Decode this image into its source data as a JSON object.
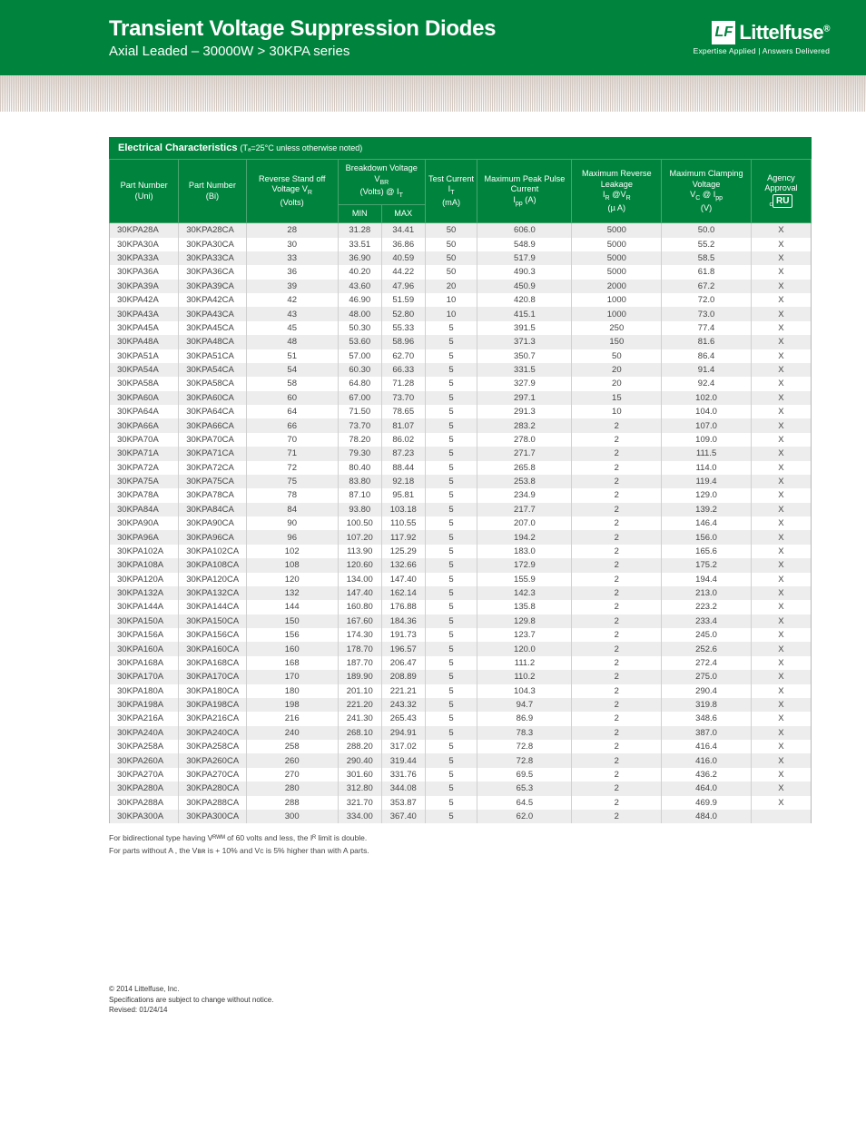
{
  "header": {
    "title": "Transient Voltage Suppression Diodes",
    "subtitle": "Axial Leaded – 30000W  >  30KPA series",
    "brand": "Littelfuse",
    "tagline": "Expertise Applied | Answers Delivered"
  },
  "section": {
    "label": "Electrical Characteristics",
    "note": "(Tₐ=25°C unless otherwise noted)"
  },
  "columns": {
    "uni": "Part Number (Uni)",
    "bi": "Part Number (Bi)",
    "vr": "Reverse Stand off Voltage V",
    "vr_unit": "(Volts)",
    "vbr": "Breakdown Voltage V",
    "vbr_unit": "(Volts) @ I",
    "min": "MIN",
    "max": "MAX",
    "it": "Test Current I",
    "it_unit": "(mA)",
    "ipp": "Maximum Peak Pulse Current",
    "ipp_sym": "I",
    "ipp_unit": " (A)",
    "ir": "Maximum Reverse Leakage",
    "ir_sym": "I",
    "ir_at": " @V",
    "ir_unit": "(µ A)",
    "vc": "Maximum Clamping Voltage",
    "vc_sym": "V",
    "vc_at": " @ I",
    "vc_unit": "(V)",
    "agency": "Agency Approval"
  },
  "rows": [
    [
      "30KPA28A",
      "30KPA28CA",
      "28",
      "31.28",
      "34.41",
      "50",
      "606.0",
      "5000",
      "50.0",
      "X"
    ],
    [
      "30KPA30A",
      "30KPA30CA",
      "30",
      "33.51",
      "36.86",
      "50",
      "548.9",
      "5000",
      "55.2",
      "X"
    ],
    [
      "30KPA33A",
      "30KPA33CA",
      "33",
      "36.90",
      "40.59",
      "50",
      "517.9",
      "5000",
      "58.5",
      "X"
    ],
    [
      "30KPA36A",
      "30KPA36CA",
      "36",
      "40.20",
      "44.22",
      "50",
      "490.3",
      "5000",
      "61.8",
      "X"
    ],
    [
      "30KPA39A",
      "30KPA39CA",
      "39",
      "43.60",
      "47.96",
      "20",
      "450.9",
      "2000",
      "67.2",
      "X"
    ],
    [
      "30KPA42A",
      "30KPA42CA",
      "42",
      "46.90",
      "51.59",
      "10",
      "420.8",
      "1000",
      "72.0",
      "X"
    ],
    [
      "30KPA43A",
      "30KPA43CA",
      "43",
      "48.00",
      "52.80",
      "10",
      "415.1",
      "1000",
      "73.0",
      "X"
    ],
    [
      "30KPA45A",
      "30KPA45CA",
      "45",
      "50.30",
      "55.33",
      "5",
      "391.5",
      "250",
      "77.4",
      "X"
    ],
    [
      "30KPA48A",
      "30KPA48CA",
      "48",
      "53.60",
      "58.96",
      "5",
      "371.3",
      "150",
      "81.6",
      "X"
    ],
    [
      "30KPA51A",
      "30KPA51CA",
      "51",
      "57.00",
      "62.70",
      "5",
      "350.7",
      "50",
      "86.4",
      "X"
    ],
    [
      "30KPA54A",
      "30KPA54CA",
      "54",
      "60.30",
      "66.33",
      "5",
      "331.5",
      "20",
      "91.4",
      "X"
    ],
    [
      "30KPA58A",
      "30KPA58CA",
      "58",
      "64.80",
      "71.28",
      "5",
      "327.9",
      "20",
      "92.4",
      "X"
    ],
    [
      "30KPA60A",
      "30KPA60CA",
      "60",
      "67.00",
      "73.70",
      "5",
      "297.1",
      "15",
      "102.0",
      "X"
    ],
    [
      "30KPA64A",
      "30KPA64CA",
      "64",
      "71.50",
      "78.65",
      "5",
      "291.3",
      "10",
      "104.0",
      "X"
    ],
    [
      "30KPA66A",
      "30KPA66CA",
      "66",
      "73.70",
      "81.07",
      "5",
      "283.2",
      "2",
      "107.0",
      "X"
    ],
    [
      "30KPA70A",
      "30KPA70CA",
      "70",
      "78.20",
      "86.02",
      "5",
      "278.0",
      "2",
      "109.0",
      "X"
    ],
    [
      "30KPA71A",
      "30KPA71CA",
      "71",
      "79.30",
      "87.23",
      "5",
      "271.7",
      "2",
      "111.5",
      "X"
    ],
    [
      "30KPA72A",
      "30KPA72CA",
      "72",
      "80.40",
      "88.44",
      "5",
      "265.8",
      "2",
      "114.0",
      "X"
    ],
    [
      "30KPA75A",
      "30KPA75CA",
      "75",
      "83.80",
      "92.18",
      "5",
      "253.8",
      "2",
      "119.4",
      "X"
    ],
    [
      "30KPA78A",
      "30KPA78CA",
      "78",
      "87.10",
      "95.81",
      "5",
      "234.9",
      "2",
      "129.0",
      "X"
    ],
    [
      "30KPA84A",
      "30KPA84CA",
      "84",
      "93.80",
      "103.18",
      "5",
      "217.7",
      "2",
      "139.2",
      "X"
    ],
    [
      "30KPA90A",
      "30KPA90CA",
      "90",
      "100.50",
      "110.55",
      "5",
      "207.0",
      "2",
      "146.4",
      "X"
    ],
    [
      "30KPA96A",
      "30KPA96CA",
      "96",
      "107.20",
      "117.92",
      "5",
      "194.2",
      "2",
      "156.0",
      "X"
    ],
    [
      "30KPA102A",
      "30KPA102CA",
      "102",
      "113.90",
      "125.29",
      "5",
      "183.0",
      "2",
      "165.6",
      "X"
    ],
    [
      "30KPA108A",
      "30KPA108CA",
      "108",
      "120.60",
      "132.66",
      "5",
      "172.9",
      "2",
      "175.2",
      "X"
    ],
    [
      "30KPA120A",
      "30KPA120CA",
      "120",
      "134.00",
      "147.40",
      "5",
      "155.9",
      "2",
      "194.4",
      "X"
    ],
    [
      "30KPA132A",
      "30KPA132CA",
      "132",
      "147.40",
      "162.14",
      "5",
      "142.3",
      "2",
      "213.0",
      "X"
    ],
    [
      "30KPA144A",
      "30KPA144CA",
      "144",
      "160.80",
      "176.88",
      "5",
      "135.8",
      "2",
      "223.2",
      "X"
    ],
    [
      "30KPA150A",
      "30KPA150CA",
      "150",
      "167.60",
      "184.36",
      "5",
      "129.8",
      "2",
      "233.4",
      "X"
    ],
    [
      "30KPA156A",
      "30KPA156CA",
      "156",
      "174.30",
      "191.73",
      "5",
      "123.7",
      "2",
      "245.0",
      "X"
    ],
    [
      "30KPA160A",
      "30KPA160CA",
      "160",
      "178.70",
      "196.57",
      "5",
      "120.0",
      "2",
      "252.6",
      "X"
    ],
    [
      "30KPA168A",
      "30KPA168CA",
      "168",
      "187.70",
      "206.47",
      "5",
      "111.2",
      "2",
      "272.4",
      "X"
    ],
    [
      "30KPA170A",
      "30KPA170CA",
      "170",
      "189.90",
      "208.89",
      "5",
      "110.2",
      "2",
      "275.0",
      "X"
    ],
    [
      "30KPA180A",
      "30KPA180CA",
      "180",
      "201.10",
      "221.21",
      "5",
      "104.3",
      "2",
      "290.4",
      "X"
    ],
    [
      "30KPA198A",
      "30KPA198CA",
      "198",
      "221.20",
      "243.32",
      "5",
      "94.7",
      "2",
      "319.8",
      "X"
    ],
    [
      "30KPA216A",
      "30KPA216CA",
      "216",
      "241.30",
      "265.43",
      "5",
      "86.9",
      "2",
      "348.6",
      "X"
    ],
    [
      "30KPA240A",
      "30KPA240CA",
      "240",
      "268.10",
      "294.91",
      "5",
      "78.3",
      "2",
      "387.0",
      "X"
    ],
    [
      "30KPA258A",
      "30KPA258CA",
      "258",
      "288.20",
      "317.02",
      "5",
      "72.8",
      "2",
      "416.4",
      "X"
    ],
    [
      "30KPA260A",
      "30KPA260CA",
      "260",
      "290.40",
      "319.44",
      "5",
      "72.8",
      "2",
      "416.0",
      "X"
    ],
    [
      "30KPA270A",
      "30KPA270CA",
      "270",
      "301.60",
      "331.76",
      "5",
      "69.5",
      "2",
      "436.2",
      "X"
    ],
    [
      "30KPA280A",
      "30KPA280CA",
      "280",
      "312.80",
      "344.08",
      "5",
      "65.3",
      "2",
      "464.0",
      "X"
    ],
    [
      "30KPA288A",
      "30KPA288CA",
      "288",
      "321.70",
      "353.87",
      "5",
      "64.5",
      "2",
      "469.9",
      "X"
    ],
    [
      "30KPA300A",
      "30KPA300CA",
      "300",
      "334.00",
      "367.40",
      "5",
      "62.0",
      "2",
      "484.0",
      ""
    ]
  ],
  "footnotes": [
    "For bidirectional type having Vᴿᵂᴹ of 60 volts and less, the Iᴿ limit is double.",
    "For parts without A , the Vʙʀ is + 10% and Vc is 5% higher than with A parts."
  ],
  "footer": {
    "copyright": "© 2014 Littelfuse, Inc.",
    "disclaimer": "Specifications are subject to change without notice.",
    "revised": "Revised: 01/24/14"
  },
  "colors": {
    "brand_green": "#00843d",
    "row_alt": "#ecedec",
    "border": "#d0d0d0"
  }
}
